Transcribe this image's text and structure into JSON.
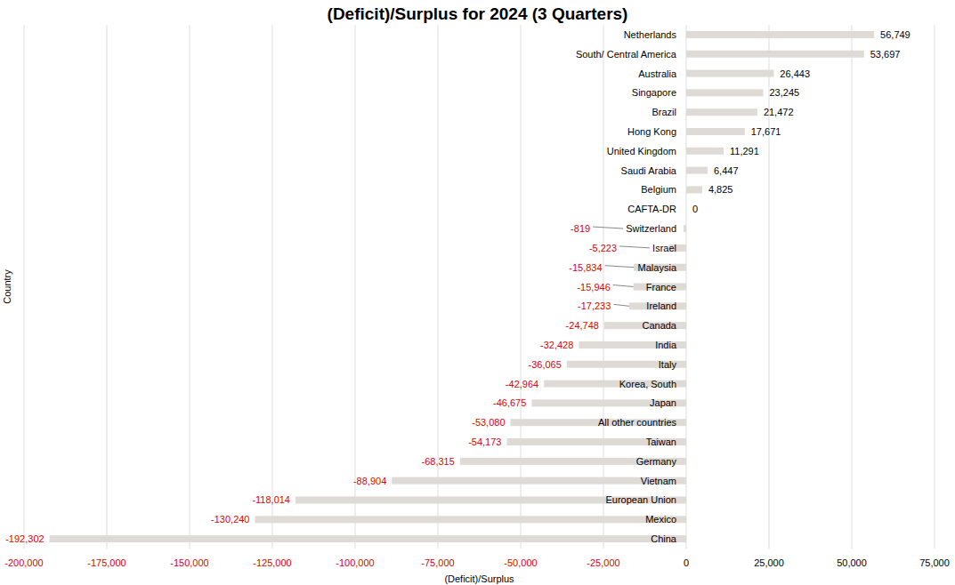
{
  "chart_data": {
    "type": "bar",
    "orientation": "horizontal",
    "title": "(Deficit)/Surplus for 2024 (3 Quarters)",
    "xlabel": "(Deficit)/Surplus",
    "ylabel": "Country",
    "categories": [
      "Netherlands",
      "South/ Central America",
      "Australia",
      "Singapore",
      "Brazil",
      "Hong Kong",
      "United Kingdom",
      "Saudi Arabia",
      "Belgium",
      "CAFTA-DR",
      "Switzerland",
      "Israel",
      "Malaysia",
      "France",
      "Ireland",
      "Canada",
      "India",
      "Italy",
      "Korea, South",
      "Japan",
      "All other countries",
      "Taiwan",
      "Germany",
      "Vietnam",
      "European Union",
      "Mexico",
      "China"
    ],
    "values": [
      56749,
      53697,
      26443,
      23245,
      21472,
      17671,
      11291,
      6447,
      4825,
      0,
      -819,
      -5223,
      -15834,
      -15946,
      -17233,
      -24748,
      -32428,
      -36065,
      -42964,
      -46675,
      -53080,
      -54173,
      -68315,
      -88904,
      -118014,
      -130240,
      -192302
    ],
    "value_labels": [
      "56,749",
      "53,697",
      "26,443",
      "23,245",
      "21,472",
      "17,671",
      "11,291",
      "6,447",
      "4,825",
      "0",
      "-819",
      "-5,223",
      "-15,834",
      "-15,946",
      "-17,233",
      "-24,748",
      "-32,428",
      "-36,065",
      "-42,964",
      "-46,675",
      "-53,080",
      "-54,173",
      "-68,315",
      "-88,904",
      "-118,014",
      "-130,240",
      "-192,302"
    ],
    "color": "#dedad6",
    "data_labels": true,
    "grid": true,
    "xlim": [
      -200000,
      75000
    ],
    "xticks": [
      {
        "value": -200000,
        "label": "-200,000"
      },
      {
        "value": -175000,
        "label": "-175,000"
      },
      {
        "value": -150000,
        "label": "-150,000"
      },
      {
        "value": -125000,
        "label": "-125,000"
      },
      {
        "value": -100000,
        "label": "-100,000"
      },
      {
        "value": -75000,
        "label": "-75,000"
      },
      {
        "value": -50000,
        "label": "-50,000"
      },
      {
        "value": -25000,
        "label": "-25,000"
      },
      0,
      {
        "value": 25000,
        "label": "25,000"
      },
      {
        "value": 50000,
        "label": "50,000"
      },
      {
        "value": 75000,
        "label": "75,000"
      }
    ]
  }
}
